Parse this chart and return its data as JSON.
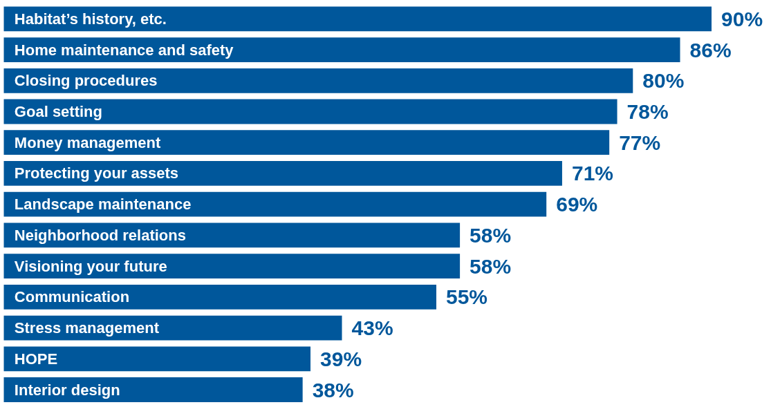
{
  "chart_data": {
    "type": "bar",
    "orientation": "horizontal",
    "categories": [
      "Habitat’s history, etc.",
      "Home maintenance and safety",
      "Closing procedures",
      "Goal setting",
      "Money management",
      "Protecting your assets",
      "Landscape maintenance",
      "Neighborhood relations",
      "Visioning your future",
      "Communication",
      "Stress management",
      "HOPE",
      "Interior design"
    ],
    "values": [
      90,
      86,
      80,
      78,
      77,
      71,
      69,
      58,
      58,
      55,
      43,
      39,
      38
    ],
    "value_labels": [
      "90%",
      "86%",
      "80%",
      "78%",
      "77%",
      "71%",
      "69%",
      "58%",
      "58%",
      "55%",
      "43%",
      "39%",
      "38%"
    ],
    "color": "#00579b",
    "grid": false
  }
}
